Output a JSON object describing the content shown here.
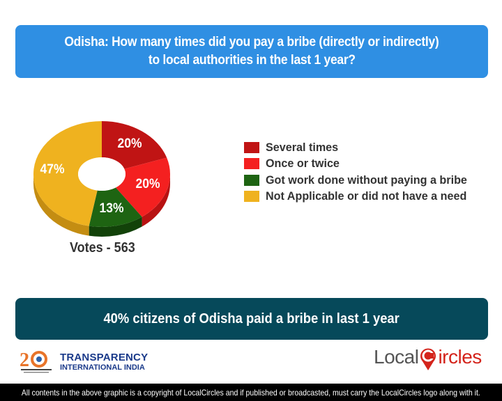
{
  "header": {
    "title_line1": "Odisha: How many times did you pay a bribe (directly or indirectly)",
    "title_line2": "to local authorities in the last 1 year?",
    "background": "#2f8fe3"
  },
  "chart_data": {
    "type": "pie",
    "style": "donut-3d",
    "title": "Odisha: How many times did you pay a bribe (directly or indirectly) to local authorities in the last 1 year?",
    "categories": [
      "Several times",
      "Once or twice",
      "Got work done without paying a bribe",
      "Not Applicable or did not have a need"
    ],
    "values": [
      20,
      20,
      13,
      47
    ],
    "labels": [
      "20%",
      "20%",
      "13%",
      "47%"
    ],
    "colors": [
      "#c01414",
      "#f42020",
      "#1e6412",
      "#efb21f"
    ],
    "side_colors": [
      "#8f0d0d",
      "#b81212",
      "#124209",
      "#c48d12"
    ],
    "unit": "%",
    "legend_position": "right",
    "votes_label": "Votes - 563",
    "votes": 563
  },
  "legend": {
    "items": [
      {
        "label": "Several times",
        "color": "#c01414"
      },
      {
        "label": "Once or twice",
        "color": "#f42020"
      },
      {
        "label": "Got work done without paying a bribe",
        "color": "#1e6412"
      },
      {
        "label": "Not Applicable or did not have a need",
        "color": "#efb21f"
      }
    ]
  },
  "summary": {
    "text": "40% citizens of Odisha paid a bribe in last 1 year",
    "background": "#06495a"
  },
  "logos": {
    "transparency_line1": "TRANSPARENCY",
    "transparency_line2": "INTERNATIONAL INDIA",
    "ti_years": "20",
    "localcircles_left": "Local",
    "localcircles_right": "ircles"
  },
  "footer": {
    "text": "All contents in the above graphic is a copyright of LocalCircles and if published or broadcasted, must carry the LocalCircles logo along with it."
  }
}
